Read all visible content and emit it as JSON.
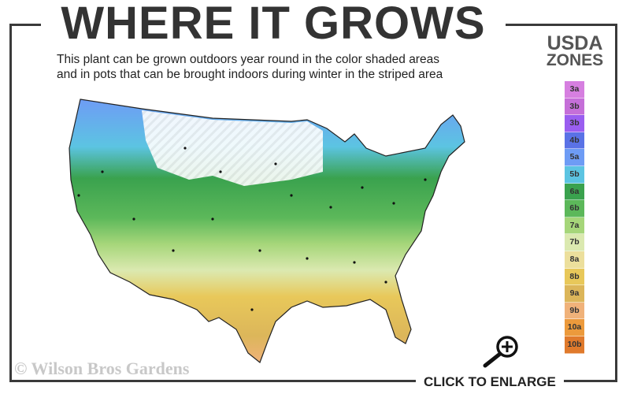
{
  "title": "WHERE IT GROWS",
  "subtitle_lines": [
    "This plant can be grown outdoors year round in the color shaded areas",
    "and in pots that can be brought indoors during winter in the striped area"
  ],
  "legend": {
    "title_line1": "USDA",
    "title_line2": "ZONES",
    "zones": [
      {
        "label": "3a",
        "color": "#d67fe0"
      },
      {
        "label": "3b",
        "color": "#c56fd8"
      },
      {
        "label": "3b",
        "color": "#9a5ef0"
      },
      {
        "label": "4b",
        "color": "#5a72e6"
      },
      {
        "label": "5a",
        "color": "#6e9cf5"
      },
      {
        "label": "5b",
        "color": "#5cc4e2"
      },
      {
        "label": "6a",
        "color": "#3aa24e"
      },
      {
        "label": "6b",
        "color": "#5cb85a"
      },
      {
        "label": "7a",
        "color": "#a6d67a"
      },
      {
        "label": "7b",
        "color": "#dbe9b0"
      },
      {
        "label": "8a",
        "color": "#ecdf9c"
      },
      {
        "label": "8b",
        "color": "#e8c85a"
      },
      {
        "label": "9a",
        "color": "#dcb65a"
      },
      {
        "label": "9b",
        "color": "#f0b27a"
      },
      {
        "label": "10a",
        "color": "#ec9a3c"
      },
      {
        "label": "10b",
        "color": "#e07a2c"
      }
    ]
  },
  "copyright": "© Wilson Bros Gardens",
  "enlarge_label": "CLICK TO ENLARGE",
  "icons": {
    "zoom": "magnifier-plus-icon"
  }
}
